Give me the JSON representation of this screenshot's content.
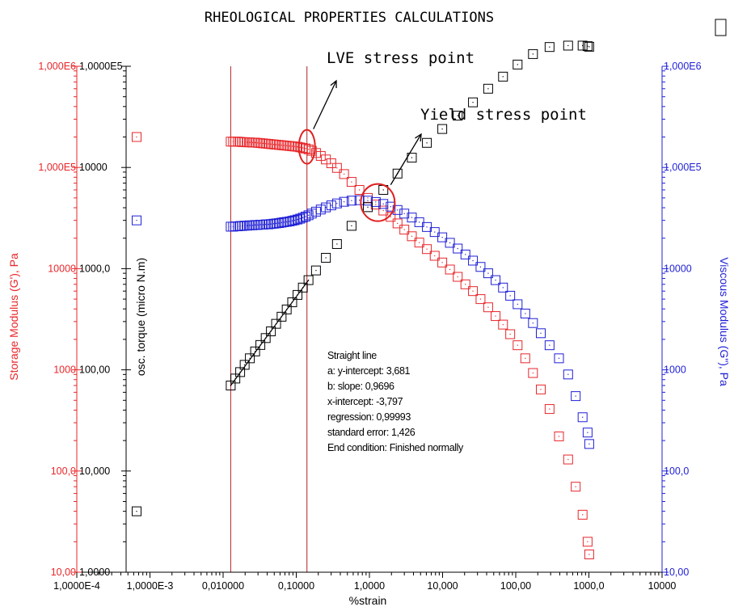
{
  "chart_data": {
    "type": "scatter",
    "title": "RHEOLOGICAL PROPERTIES CALCULATIONS",
    "xlabel": "%strain",
    "x_scale": "log",
    "xlim": [
      0.0001,
      10000
    ],
    "x_ticks": [
      "1,0000E-4",
      "1,0000E-3",
      "0,010000",
      "0,10000",
      "1,0000",
      "10,000",
      "100,00",
      "1000,0",
      "10000"
    ],
    "y_axes": [
      {
        "id": "storage",
        "label": "Storage Modulus (G'), Pa",
        "scale": "log",
        "range": [
          10,
          1000000
        ],
        "color": "#e8262a",
        "ticks": [
          "10,00",
          "100,0",
          "1000",
          "10000",
          "1,000E5",
          "1,000E6"
        ]
      },
      {
        "id": "torque",
        "label": "osc. torque (micro N.m)",
        "scale": "log",
        "range": [
          1,
          100000
        ],
        "color": "#000000",
        "ticks": [
          "1,0000",
          "10,000",
          "100,00",
          "1000,0",
          "10000",
          "1,0000E5"
        ]
      },
      {
        "id": "viscous",
        "label": "Viscous Modulus (G\"), Pa",
        "scale": "log",
        "range": [
          10,
          1000000
        ],
        "color": "#1f1fd6",
        "ticks": [
          "10,00",
          "100,0",
          "1000",
          "10000",
          "1,000E5",
          "1,000E6"
        ]
      }
    ],
    "series": [
      {
        "axis": "storage",
        "color": "#e8262a",
        "x": [
          0.0127,
          0.0137,
          0.0147,
          0.0159,
          0.0171,
          0.0183,
          0.0197,
          0.0214,
          0.0232,
          0.0252,
          0.0274,
          0.0297,
          0.0323,
          0.0351,
          0.0382,
          0.0415,
          0.045,
          0.049,
          0.053,
          0.058,
          0.063,
          0.068,
          0.074,
          0.081,
          0.088,
          0.095,
          0.104,
          0.113,
          0.123,
          0.134,
          0.147,
          0.163,
          0.186,
          0.216,
          0.254,
          0.301,
          0.36,
          0.45,
          0.57,
          0.73,
          0.95,
          1.22,
          1.55,
          1.95,
          2.42,
          3.0,
          3.8,
          4.8,
          6.1,
          7.8,
          9.9,
          12.6,
          16.1,
          20.5,
          26.0,
          33.0,
          42.0,
          53.0,
          67.0,
          84.0,
          106.0,
          135.0,
          172.0,
          220.0,
          290.0,
          390.0,
          520.0,
          660.0,
          820.0,
          960.0,
          1010.0
        ],
        "y": [
          180000,
          180000,
          180000,
          180000,
          179000,
          178000,
          178000,
          177000,
          177000,
          176000,
          176000,
          175000,
          174000,
          173000,
          172000,
          171000,
          170000,
          169000,
          168000,
          167000,
          166000,
          165000,
          164000,
          163000,
          162000,
          161000,
          160000,
          158000,
          156000,
          154000,
          151000,
          146000,
          139000,
          130000,
          120000,
          110000,
          99000,
          86000,
          72000,
          60000,
          50000,
          43000,
          37500,
          32500,
          28000,
          24300,
          20900,
          18100,
          15600,
          13400,
          11500,
          9800,
          8300,
          7000,
          6000,
          5000,
          4150,
          3400,
          2800,
          2250,
          1750,
          1300,
          930,
          640,
          410,
          220,
          130,
          70,
          37,
          20,
          15
        ]
      },
      {
        "axis": "viscous",
        "color": "#1f1fd6",
        "x": [
          0.0127,
          0.0137,
          0.0147,
          0.0159,
          0.0171,
          0.0183,
          0.0197,
          0.0214,
          0.0232,
          0.0252,
          0.0274,
          0.0297,
          0.0323,
          0.0351,
          0.0382,
          0.0415,
          0.045,
          0.049,
          0.053,
          0.058,
          0.063,
          0.068,
          0.074,
          0.081,
          0.088,
          0.095,
          0.104,
          0.113,
          0.123,
          0.134,
          0.147,
          0.163,
          0.186,
          0.216,
          0.254,
          0.301,
          0.36,
          0.45,
          0.57,
          0.73,
          0.95,
          1.22,
          1.55,
          1.95,
          2.42,
          3.0,
          3.8,
          4.8,
          6.1,
          7.8,
          9.9,
          12.6,
          16.1,
          20.5,
          26.0,
          33.0,
          42.0,
          53.0,
          67.0,
          84.0,
          106.0,
          135.0,
          172.0,
          220.0,
          290.0,
          390.0,
          520.0,
          660.0,
          820.0,
          960.0,
          1010.0
        ],
        "y": [
          26000,
          26000,
          26200,
          26200,
          26400,
          26400,
          26600,
          26600,
          26800,
          26800,
          27000,
          27000,
          27200,
          27200,
          27400,
          27400,
          27600,
          27800,
          28000,
          28200,
          28500,
          28800,
          29000,
          29300,
          29700,
          30100,
          30600,
          31200,
          31900,
          32700,
          33700,
          35000,
          36600,
          38400,
          40300,
          42200,
          44100,
          45800,
          47000,
          47500,
          47000,
          45600,
          43600,
          41000,
          38000,
          35000,
          32000,
          28800,
          25800,
          23000,
          20400,
          18000,
          15800,
          13800,
          12000,
          10400,
          9000,
          7700,
          6500,
          5400,
          4450,
          3600,
          2900,
          2300,
          1750,
          1300,
          900,
          550,
          340,
          240,
          185
        ]
      },
      {
        "axis": "torque",
        "color": "#000000",
        "x": [
          0.0127,
          0.0147,
          0.0171,
          0.0197,
          0.0232,
          0.0274,
          0.0323,
          0.0382,
          0.045,
          0.053,
          0.063,
          0.074,
          0.088,
          0.104,
          0.123,
          0.147,
          0.186,
          0.254,
          0.36,
          0.57,
          0.95,
          1.55,
          2.42,
          3.8,
          6.1,
          9.9,
          16.1,
          26.0,
          42.0,
          67.0,
          106.0,
          172.0,
          290.0,
          520.0,
          820.0,
          960.0,
          1010.0
        ],
        "y": [
          70,
          82,
          95,
          112,
          130,
          152,
          176,
          206,
          240,
          285,
          335,
          395,
          465,
          550,
          650,
          770,
          960,
          1280,
          1750,
          2650,
          4050,
          6000,
          8700,
          12500,
          17500,
          24000,
          32500,
          44000,
          60000,
          79000,
          104000,
          132000,
          155000,
          160000,
          160000,
          158000,
          156000
        ]
      }
    ],
    "legend_markers": [
      {
        "axis": "storage",
        "color": "#e8262a",
        "y": 200000
      },
      {
        "axis": "viscous",
        "color": "#1f1fd6",
        "y": 30000
      },
      {
        "axis": "torque",
        "color": "#000000",
        "y": 4
      }
    ],
    "vertical_lines": {
      "color": "#b22222",
      "x": [
        0.0127,
        0.14
      ]
    },
    "annotations": {
      "lve_label": "LVE stress point",
      "yield_label": "Yield stress point",
      "lve_point": {
        "x": 0.14,
        "y": 160000
      },
      "yield_point": {
        "x": 1.3,
        "y": 45000
      }
    },
    "fit_line": {
      "x": [
        0.0127,
        0.147
      ]
    },
    "stats_lines": [
      "Straight line",
      "a: y-intercept: 3,681",
      "b: slope: 0,9696",
      "x-intercept: -3,797",
      "regression: 0,99993",
      "standard error: 1,426",
      "End condition: Finished normally"
    ]
  }
}
